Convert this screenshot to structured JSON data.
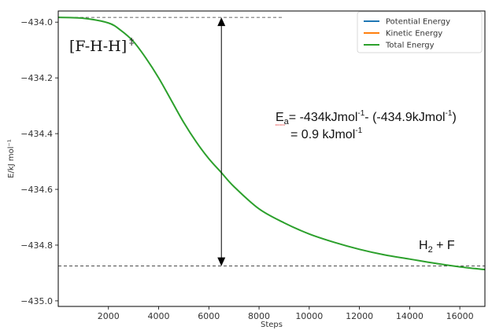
{
  "chart_data": {
    "type": "line",
    "xlabel": "Steps",
    "ylabel": "E/kJ mol⁻¹",
    "xlim": [
      0,
      17000
    ],
    "ylim": [
      -435.02,
      -433.96
    ],
    "xticks": [
      2000,
      4000,
      6000,
      8000,
      10000,
      12000,
      14000,
      16000
    ],
    "xtick_labels": [
      "2000",
      "4000",
      "6000",
      "8000",
      "10000",
      "12000",
      "14000",
      "16000"
    ],
    "yticks": [
      -434.0,
      -434.2,
      -434.4,
      -434.6,
      -434.8,
      -435.0
    ],
    "ytick_labels": [
      "−434.0",
      "−434.2",
      "−434.4",
      "−434.6",
      "−434.8",
      "−435.0"
    ],
    "grid": false,
    "legend": {
      "position": "top-right"
    },
    "series": [
      {
        "name": "Potential Energy",
        "color": "#1f77b4",
        "x": [],
        "y": []
      },
      {
        "name": "Kinetic Energy",
        "color": "#ff7f0e",
        "x": [],
        "y": []
      },
      {
        "name": "Total Energy",
        "color": "#2ca02c",
        "x": [
          0,
          1000,
          2000,
          2500,
          3000,
          3500,
          4000,
          4500,
          5000,
          5500,
          6000,
          6500,
          7000,
          8000,
          9000,
          10000,
          11000,
          12000,
          13000,
          14000,
          15000,
          16000,
          17000
        ],
        "y": [
          -433.983,
          -433.986,
          -434.003,
          -434.03,
          -434.07,
          -434.13,
          -434.2,
          -434.28,
          -434.36,
          -434.43,
          -434.49,
          -434.54,
          -434.59,
          -434.67,
          -434.72,
          -434.76,
          -434.79,
          -434.815,
          -434.835,
          -434.85,
          -434.865,
          -434.878,
          -434.888
        ]
      }
    ],
    "reference_lines": [
      {
        "y": -433.983,
        "x_start": 0,
        "x_end": 9000,
        "style": "dashed"
      },
      {
        "y": -434.875,
        "x_start": 0,
        "x_end": 17000,
        "style": "dashed"
      }
    ],
    "arrow": {
      "x": 6500,
      "y_from": -433.983,
      "y_to": -434.875,
      "style": "double-headed"
    },
    "annotations": {
      "transition_state": {
        "text": "[F-H-H]",
        "superscript": "‡"
      },
      "activation_energy": {
        "ea_symbol": "E",
        "ea_subscript": "a",
        "eq_part1": "= -434kJmol",
        "eq_sup1": "-1",
        "eq_part2": "- (-434.9kJmol",
        "eq_sup2": "-1",
        "eq_close": ")",
        "result_part": "= 0.9 kJmol",
        "result_sup": "-1"
      },
      "products": {
        "text_h": "H",
        "text_sub": "2",
        "text_rest": " + F"
      }
    }
  }
}
